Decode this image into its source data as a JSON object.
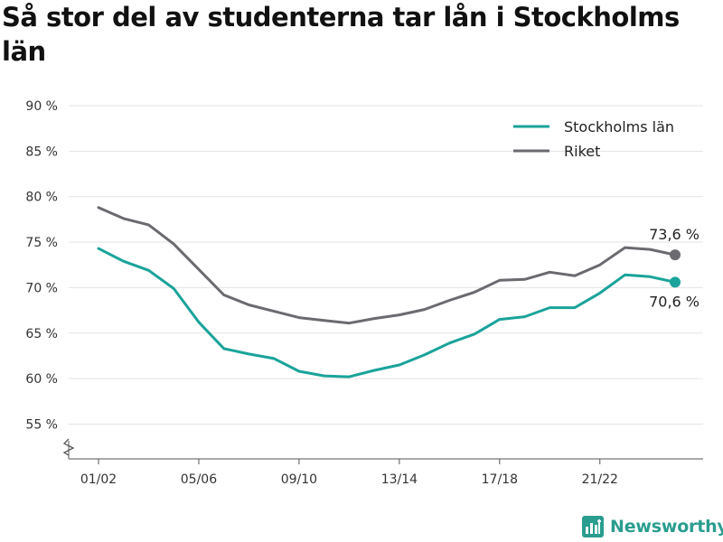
{
  "title": "Så stor del av studenterna tar lån i Stockholms län",
  "brand": {
    "name": "Newsworthy",
    "logo_icon": "newsworthy-logo-icon"
  },
  "chart_data": {
    "type": "line",
    "title": "Så stor del av studenterna tar lån i Stockholms län",
    "xlabel": "",
    "ylabel": "",
    "ylim": [
      52,
      91
    ],
    "y_axis_break": true,
    "yticks": [
      55,
      60,
      65,
      70,
      75,
      80,
      85,
      90
    ],
    "ytick_labels": [
      "55 %",
      "60 %",
      "65 %",
      "70 %",
      "75 %",
      "80 %",
      "85 %",
      "90 %"
    ],
    "x": [
      "01/02",
      "02/03",
      "03/04",
      "04/05",
      "05/06",
      "06/07",
      "07/08",
      "08/09",
      "09/10",
      "10/11",
      "11/12",
      "12/13",
      "13/14",
      "14/15",
      "15/16",
      "16/17",
      "17/18",
      "18/19",
      "19/20",
      "20/21",
      "21/22",
      "22/23",
      "23/24",
      "24/25"
    ],
    "xtick_labels": [
      "01/02",
      "05/06",
      "09/10",
      "13/14",
      "17/18",
      "21/22"
    ],
    "legend_position": "top-right",
    "grid": "horizontal",
    "series": [
      {
        "name": "Stockholms län",
        "color": "#1aa39a",
        "values": [
          74.3,
          72.9,
          71.9,
          69.9,
          66.2,
          63.3,
          62.7,
          62.2,
          60.8,
          60.3,
          60.2,
          60.9,
          61.5,
          62.6,
          63.9,
          64.9,
          66.5,
          66.8,
          67.8,
          67.8,
          69.4,
          71.4,
          71.2,
          70.6
        ],
        "end_label": "70,6 %"
      },
      {
        "name": "Riket",
        "color": "#6b6a70",
        "values": [
          78.8,
          77.6,
          76.9,
          74.8,
          72.0,
          69.2,
          68.1,
          67.4,
          66.7,
          66.4,
          66.1,
          66.6,
          67.0,
          67.6,
          68.6,
          69.5,
          70.8,
          70.9,
          71.7,
          71.3,
          72.5,
          74.4,
          74.2,
          73.6
        ],
        "end_label": "73,6 %"
      }
    ]
  }
}
